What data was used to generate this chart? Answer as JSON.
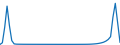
{
  "values": [
    100,
    400,
    3200,
    7000,
    3500,
    800,
    200,
    150,
    140,
    135,
    130,
    128,
    126,
    125,
    124,
    123,
    122,
    121,
    120,
    120,
    119,
    119,
    118,
    118,
    117,
    117,
    116,
    116,
    115,
    115,
    115,
    116,
    117,
    118,
    120,
    122,
    125,
    130,
    140,
    160,
    190,
    230,
    290,
    380,
    500,
    700,
    1000,
    1500,
    5000,
    7500,
    4000,
    500
  ],
  "line_color": "#1472b8",
  "bg_color": "#ffffff",
  "linewidth": 0.9
}
